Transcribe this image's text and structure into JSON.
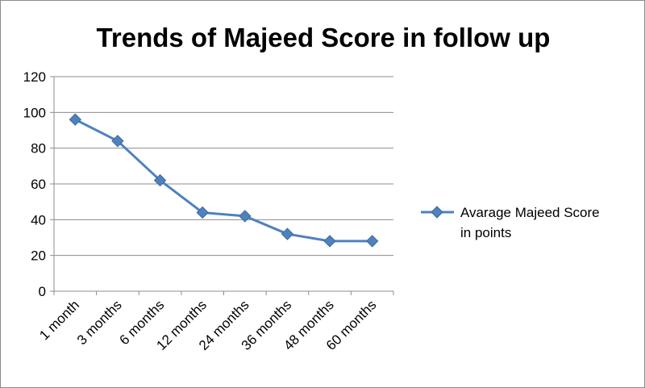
{
  "chart_data": {
    "type": "line",
    "title": "Trends of Majeed Score in follow up",
    "xlabel": "",
    "ylabel": "",
    "categories": [
      "1 month",
      "3 months",
      "6 months",
      "12 months",
      "24 months",
      "36 months",
      "48 months",
      "60 months"
    ],
    "series": [
      {
        "name": "Avarage Majeed Score in points",
        "values": [
          96,
          84,
          62,
          44,
          42,
          32,
          28,
          28
        ],
        "color": "#4F81BD",
        "marker": "diamond"
      }
    ],
    "ylim": [
      0,
      120
    ],
    "yticks": [
      0,
      20,
      40,
      60,
      80,
      100,
      120
    ],
    "grid": true,
    "legend": "right",
    "legend_lines": [
      "Avarage Majeed Score",
      "in points"
    ]
  }
}
